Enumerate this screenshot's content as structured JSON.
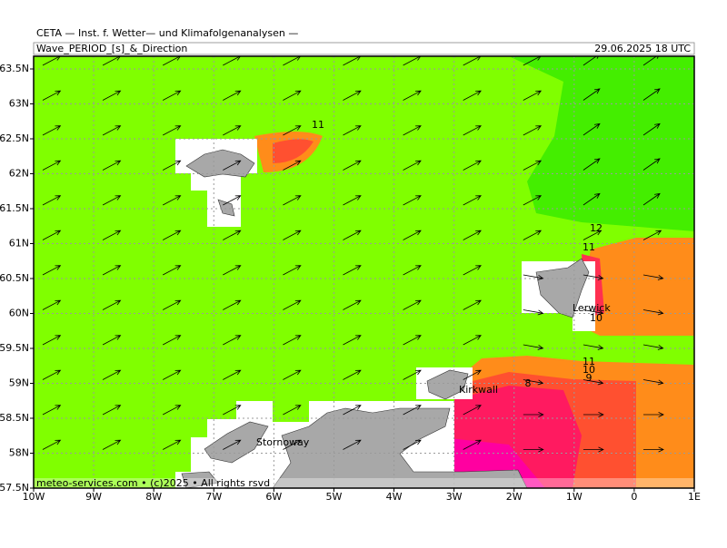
{
  "header": {
    "title": "CETA — Inst. f. Wetter— und Klimafolgenanalysen —",
    "parameter": "Wave_PERIOD_[s]_&_Direction",
    "valid_time": "29.06.2025 18 UTC"
  },
  "map": {
    "lat_labels": [
      "63.5N",
      "63N",
      "62.5N",
      "62N",
      "61.5N",
      "61N",
      "60.5N",
      "60N",
      "59.5N",
      "59N",
      "58.5N",
      "58N",
      "57.5N"
    ],
    "lon_labels": [
      "10W",
      "9W",
      "8W",
      "7W",
      "6W",
      "5W",
      "4W",
      "3W",
      "2W",
      "1W",
      "0",
      "1E"
    ],
    "contour_labels": [
      "11",
      "12",
      "11",
      "10",
      "11",
      "10",
      "9",
      "8"
    ],
    "places": [
      "Lerwick",
      "Kirkwall",
      "Stornoway"
    ],
    "credit": "meteo-services.com • (c)2025 • All rights rsvd"
  }
}
